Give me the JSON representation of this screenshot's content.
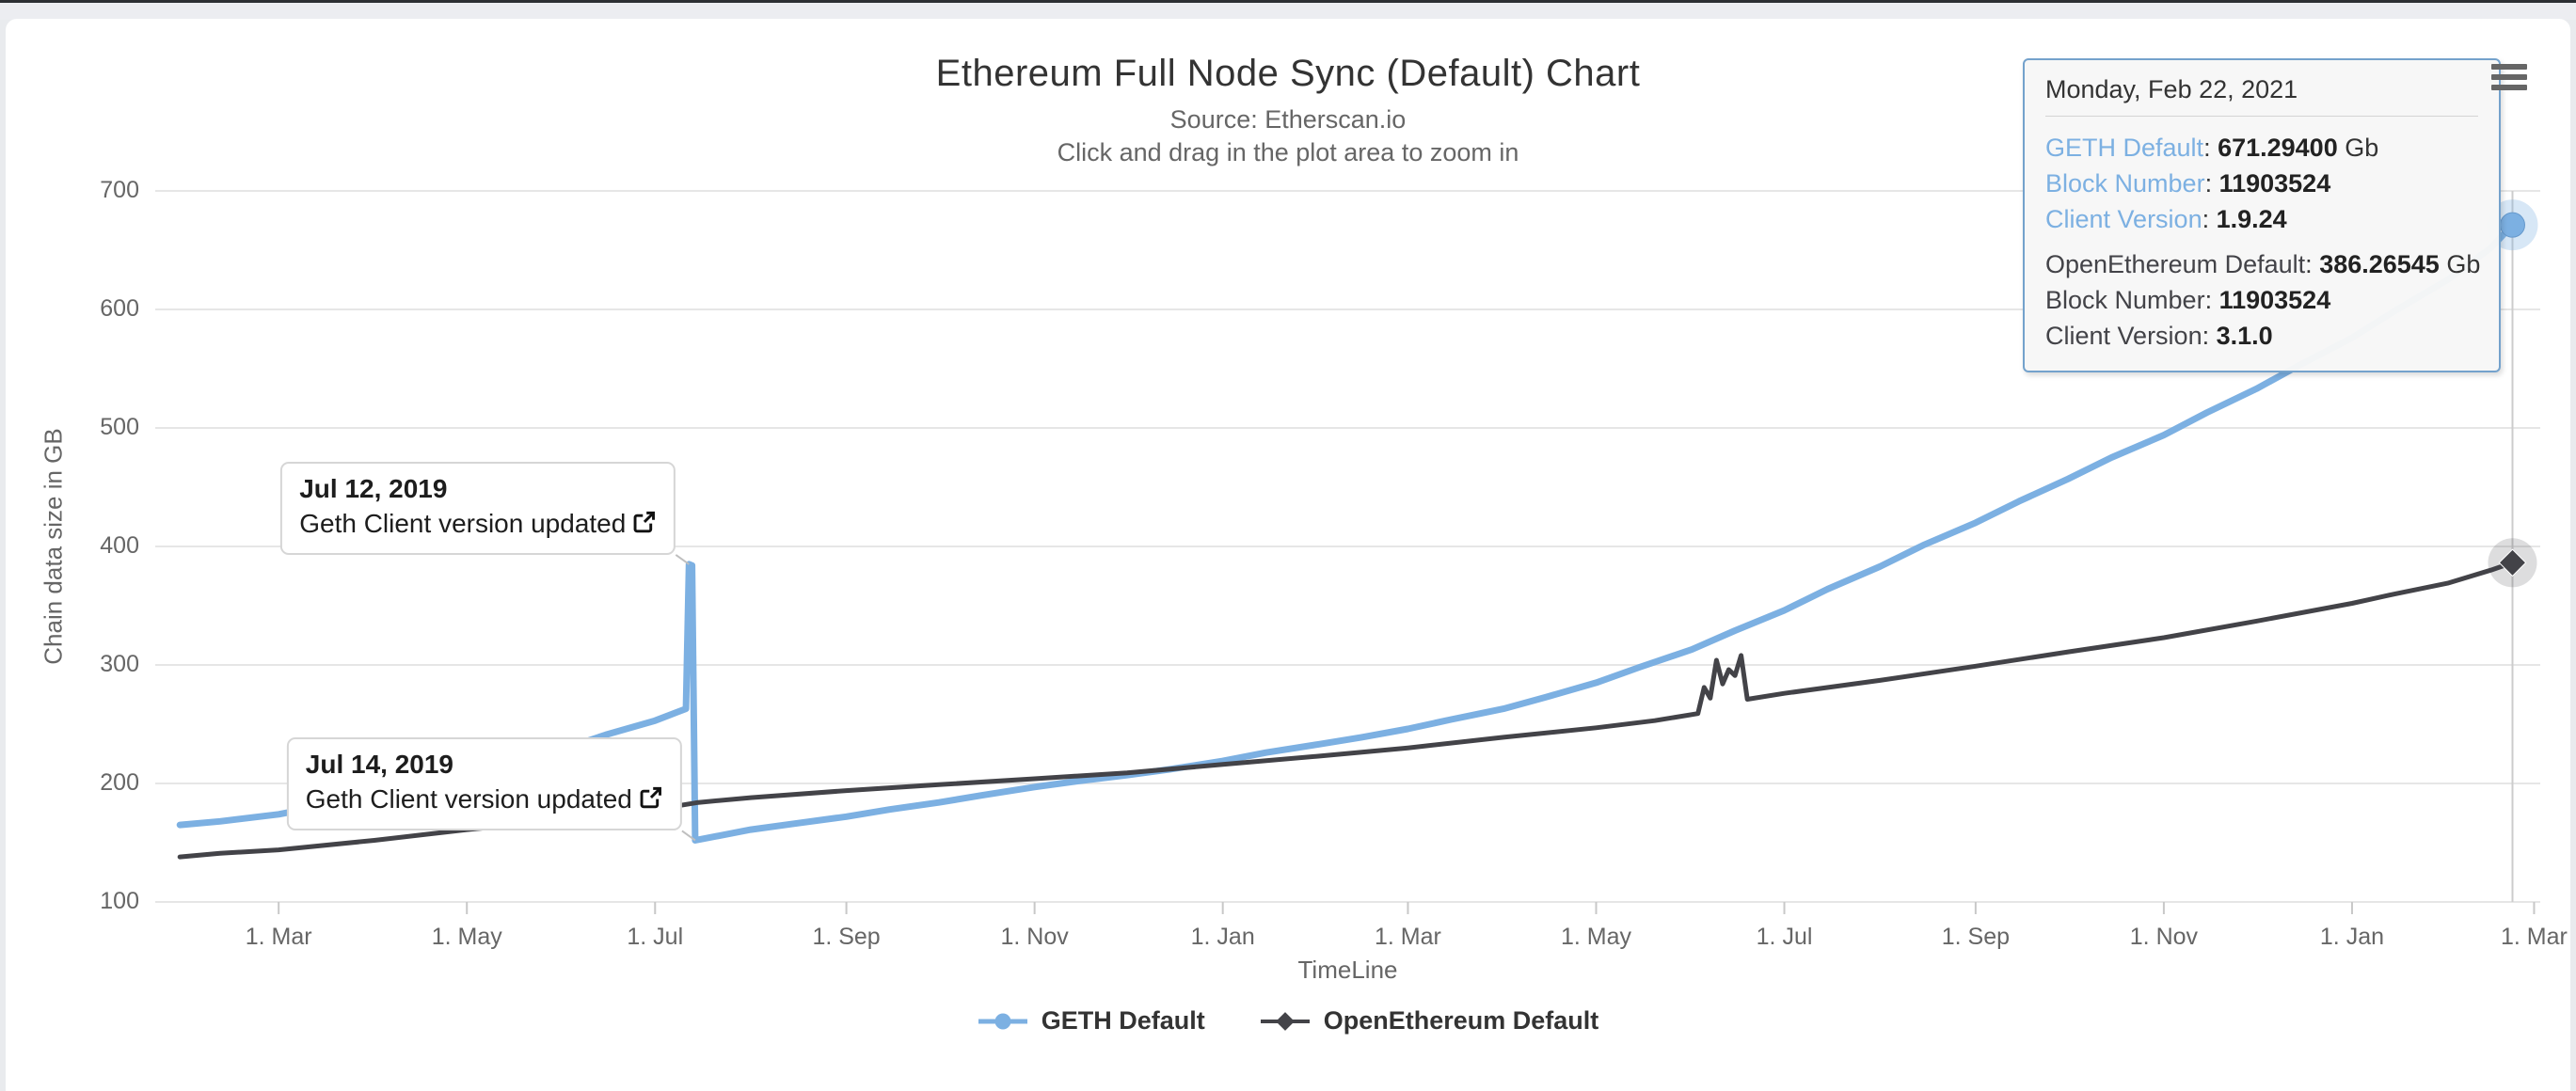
{
  "header": {
    "title": "Ethereum Full Node Sync (Default) Chart",
    "subtitle1": "Source: Etherscan.io",
    "subtitle2": "Click and drag in the plot area to zoom in"
  },
  "menu_button": {
    "icon": "hamburger-menu-icon"
  },
  "tooltip": {
    "date": "Monday, Feb 22, 2021",
    "border_color": "#74a2cc",
    "groups": [
      {
        "label_color": "#7cb0e2",
        "rows": [
          {
            "label": "GETH Default",
            "value": "671.29400",
            "suffix": " Gb"
          },
          {
            "label": "Block Number",
            "value": "11903524",
            "suffix": ""
          },
          {
            "label": "Client Version",
            "value": "1.9.24",
            "suffix": ""
          }
        ]
      },
      {
        "label_color": "#434348",
        "rows": [
          {
            "label": "OpenEthereum Default",
            "value": "386.26545",
            "suffix": " Gb"
          },
          {
            "label": "Block Number",
            "value": "11903524",
            "suffix": ""
          },
          {
            "label": "Client Version",
            "value": "3.1.0",
            "suffix": ""
          }
        ]
      }
    ]
  },
  "annotations": [
    {
      "title": "Jul 12, 2019",
      "text": "Geth Client version updated",
      "icon": "external-link-icon",
      "target": {
        "date": "2019-07-12",
        "value": 385
      }
    },
    {
      "title": "Jul 14, 2019",
      "text": "Geth Client version updated",
      "icon": "external-link-icon",
      "target": {
        "date": "2019-07-14",
        "value": 152
      }
    }
  ],
  "chart_data": {
    "type": "line",
    "title": "Ethereum Full Node Sync (Default) Chart",
    "subtitle": [
      "Source: Etherscan.io",
      "Click and drag in the plot area to zoom in"
    ],
    "xlabel": "TimeLine",
    "ylabel": "Chain data size in GB",
    "ylim": [
      100,
      700
    ],
    "yticks": [
      100,
      200,
      300,
      400,
      500,
      600,
      700
    ],
    "x_range": [
      "2019-01-20",
      "2021-03-03"
    ],
    "xticks": [
      {
        "date": "2019-03-01",
        "label": "1. Mar"
      },
      {
        "date": "2019-05-01",
        "label": "1. May"
      },
      {
        "date": "2019-07-01",
        "label": "1. Jul"
      },
      {
        "date": "2019-09-01",
        "label": "1. Sep"
      },
      {
        "date": "2019-11-01",
        "label": "1. Nov"
      },
      {
        "date": "2020-01-01",
        "label": "1. Jan"
      },
      {
        "date": "2020-03-01",
        "label": "1. Mar"
      },
      {
        "date": "2020-05-01",
        "label": "1. May"
      },
      {
        "date": "2020-07-01",
        "label": "1. Jul"
      },
      {
        "date": "2020-09-01",
        "label": "1. Sep"
      },
      {
        "date": "2020-11-01",
        "label": "1. Nov"
      },
      {
        "date": "2021-01-01",
        "label": "1. Jan"
      },
      {
        "date": "2021-03-01",
        "label": "1. Mar"
      }
    ],
    "grid": "horizontal",
    "legend_position": "bottom",
    "crosshair_date": "2021-02-22",
    "colors": {
      "grid": "#e6e6e6",
      "tick": "#c8c8c8",
      "crosshair": "#cccccc",
      "axis_label": "#666666",
      "title": "#333333"
    },
    "series": [
      {
        "name": "GETH Default",
        "color": "#7cb0e2",
        "marker": "circle",
        "last_value_label": "671.29400 Gb",
        "points": [
          [
            "2019-01-28",
            165
          ],
          [
            "2019-02-10",
            168
          ],
          [
            "2019-03-01",
            174
          ],
          [
            "2019-03-15",
            181
          ],
          [
            "2019-04-01",
            189
          ],
          [
            "2019-04-15",
            197
          ],
          [
            "2019-05-01",
            207
          ],
          [
            "2019-05-15",
            217
          ],
          [
            "2019-06-01",
            229
          ],
          [
            "2019-06-15",
            241
          ],
          [
            "2019-07-01",
            253
          ],
          [
            "2019-07-08",
            260
          ],
          [
            "2019-07-11",
            263
          ],
          [
            "2019-07-12",
            385
          ],
          [
            "2019-07-13",
            384
          ],
          [
            "2019-07-14",
            152
          ],
          [
            "2019-08-01",
            161
          ],
          [
            "2019-08-15",
            166
          ],
          [
            "2019-09-01",
            172
          ],
          [
            "2019-09-15",
            178
          ],
          [
            "2019-10-01",
            184
          ],
          [
            "2019-10-15",
            190
          ],
          [
            "2019-11-01",
            197
          ],
          [
            "2019-11-15",
            202
          ],
          [
            "2019-12-01",
            207
          ],
          [
            "2019-12-15",
            212
          ],
          [
            "2020-01-01",
            219
          ],
          [
            "2020-01-15",
            226
          ],
          [
            "2020-02-01",
            233
          ],
          [
            "2020-02-15",
            239
          ],
          [
            "2020-03-01",
            246
          ],
          [
            "2020-03-15",
            254
          ],
          [
            "2020-04-01",
            263
          ],
          [
            "2020-04-15",
            273
          ],
          [
            "2020-05-01",
            285
          ],
          [
            "2020-05-15",
            298
          ],
          [
            "2020-06-01",
            313
          ],
          [
            "2020-06-15",
            329
          ],
          [
            "2020-07-01",
            346
          ],
          [
            "2020-07-15",
            364
          ],
          [
            "2020-08-01",
            383
          ],
          [
            "2020-08-15",
            401
          ],
          [
            "2020-09-01",
            420
          ],
          [
            "2020-09-15",
            438
          ],
          [
            "2020-10-01",
            457
          ],
          [
            "2020-10-15",
            475
          ],
          [
            "2020-11-01",
            494
          ],
          [
            "2020-11-15",
            513
          ],
          [
            "2020-12-01",
            533
          ],
          [
            "2020-12-15",
            553
          ],
          [
            "2021-01-01",
            576
          ],
          [
            "2021-01-15",
            599
          ],
          [
            "2021-02-01",
            625
          ],
          [
            "2021-02-15",
            652
          ],
          [
            "2021-02-22",
            671.294
          ]
        ]
      },
      {
        "name": "OpenEthereum Default",
        "color": "#434348",
        "marker": "diamond",
        "last_value_label": "386.26545 Gb",
        "points": [
          [
            "2019-01-28",
            138
          ],
          [
            "2019-02-10",
            141
          ],
          [
            "2019-03-01",
            144
          ],
          [
            "2019-04-01",
            152
          ],
          [
            "2019-05-01",
            161
          ],
          [
            "2019-06-01",
            169
          ],
          [
            "2019-07-01",
            178
          ],
          [
            "2019-07-15",
            184
          ],
          [
            "2019-08-01",
            188
          ],
          [
            "2019-09-01",
            194
          ],
          [
            "2019-10-01",
            199
          ],
          [
            "2019-11-01",
            204
          ],
          [
            "2019-12-01",
            209
          ],
          [
            "2020-01-01",
            216
          ],
          [
            "2020-02-01",
            223
          ],
          [
            "2020-03-01",
            230
          ],
          [
            "2020-04-01",
            239
          ],
          [
            "2020-05-01",
            247
          ],
          [
            "2020-05-20",
            253
          ],
          [
            "2020-06-03",
            259
          ],
          [
            "2020-06-05",
            281
          ],
          [
            "2020-06-07",
            272
          ],
          [
            "2020-06-09",
            304
          ],
          [
            "2020-06-11",
            284
          ],
          [
            "2020-06-13",
            296
          ],
          [
            "2020-06-15",
            291
          ],
          [
            "2020-06-17",
            308
          ],
          [
            "2020-06-19",
            271
          ],
          [
            "2020-07-01",
            276
          ],
          [
            "2020-08-01",
            287
          ],
          [
            "2020-09-01",
            299
          ],
          [
            "2020-10-01",
            311
          ],
          [
            "2020-11-01",
            323
          ],
          [
            "2020-12-01",
            337
          ],
          [
            "2021-01-01",
            352
          ],
          [
            "2021-01-15",
            360
          ],
          [
            "2021-02-01",
            369
          ],
          [
            "2021-02-15",
            380
          ],
          [
            "2021-02-22",
            386.26545
          ]
        ]
      }
    ]
  }
}
